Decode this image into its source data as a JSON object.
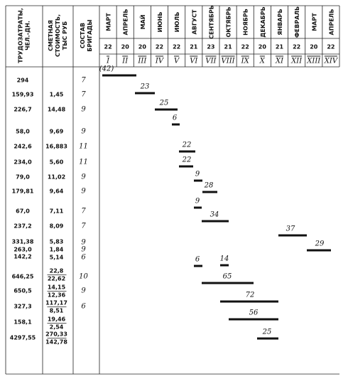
{
  "header": {
    "columns": [
      [
        "ТРУДОЗАТРАТЫ,",
        "ЧЕЛ.-ДН."
      ],
      [
        "СМЕТНАЯ",
        "СТОИМОСТЬ,",
        "ТЫС РУБ"
      ],
      [
        "СОСТАВ",
        "БРИГАДЫ"
      ]
    ],
    "months": [
      {
        "name": "МАРТ",
        "days": "22",
        "period": "I"
      },
      {
        "name": "АПРЕЛЬ",
        "days": "20",
        "period": "II"
      },
      {
        "name": "МАЙ",
        "days": "20",
        "period": "III"
      },
      {
        "name": "ИЮНЬ",
        "days": "22",
        "period": "IV"
      },
      {
        "name": "ИЮЛЬ",
        "days": "22",
        "period": "V"
      },
      {
        "name": "АВГУСТ",
        "days": "21",
        "period": "VI"
      },
      {
        "name": "СЕНТЯБРЬ",
        "days": "23",
        "period": "VII"
      },
      {
        "name": "ОКТЯБРЬ",
        "days": "21",
        "period": "VIII"
      },
      {
        "name": "НОЯБРЬ",
        "days": "22",
        "period": "IX"
      },
      {
        "name": "ДЕКАБРЬ",
        "days": "20",
        "period": "X"
      },
      {
        "name": "ЯНВАРЬ",
        "days": "21",
        "period": "XI"
      },
      {
        "name": "ФЕВРАЛЬ",
        "days": "22",
        "period": "XII"
      },
      {
        "name": "МАРТ",
        "days": "20",
        "period": "XIII"
      },
      {
        "name": "АПРЕЛЬ",
        "days": "22",
        "period": "XIV"
      }
    ]
  },
  "rows": [
    {
      "labor": [
        "294"
      ],
      "cost": [],
      "crew": [
        "7"
      ],
      "bars": [
        "(42)"
      ]
    },
    {
      "labor": [
        "159,93"
      ],
      "cost": [
        "1,45"
      ],
      "crew": [
        "7"
      ],
      "bars": [
        "23"
      ]
    },
    {
      "labor": [
        "226,7"
      ],
      "cost": [
        "14,48"
      ],
      "crew": [
        "9"
      ],
      "bars": [
        "25"
      ]
    },
    {
      "labor": [
        "58,0"
      ],
      "cost": [
        "9,69"
      ],
      "crew": [
        "9"
      ],
      "bars": [
        "6"
      ]
    },
    {
      "labor": [
        "242,6"
      ],
      "cost": [
        "16,883"
      ],
      "crew": [
        "11"
      ],
      "bars": [
        "22"
      ]
    },
    {
      "labor": [
        "234,0"
      ],
      "cost": [
        "5,60"
      ],
      "crew": [
        "11"
      ],
      "bars": [
        "22"
      ]
    },
    {
      "labor": [
        "79,0"
      ],
      "cost": [
        "11,02"
      ],
      "crew": [
        "9"
      ],
      "bars": [
        "9"
      ]
    },
    {
      "labor": [
        "179,81"
      ],
      "cost": [
        "9,64"
      ],
      "crew": [
        "9"
      ],
      "bars": [
        "28"
      ]
    },
    {
      "labor": [
        "67,0"
      ],
      "cost": [
        "7,11"
      ],
      "crew": [
        "7"
      ],
      "bars": [
        "9"
      ]
    },
    {
      "labor": [
        "237,2"
      ],
      "cost": [
        "8,09"
      ],
      "crew": [
        "7"
      ],
      "bars": [
        "34"
      ]
    },
    {
      "labor": [
        "331,38",
        "263,0",
        "142,2"
      ],
      "cost": [
        "5,83",
        "1,84",
        "5,14"
      ],
      "crew": [
        "9",
        "9",
        "6"
      ],
      "bars": [
        "37",
        "29",
        "6",
        "14"
      ]
    },
    {
      "labor": [
        "646,25"
      ],
      "cost": [
        "22,8",
        "22,62"
      ],
      "crew": [
        "10"
      ],
      "bars": [
        "65"
      ]
    },
    {
      "labor": [
        "650,5"
      ],
      "cost": [
        "14,15",
        "12,36"
      ],
      "crew": [
        "9"
      ],
      "bars": [
        "72"
      ]
    },
    {
      "labor": [
        "327,3"
      ],
      "cost": [
        "117,17",
        "8,51"
      ],
      "crew": [
        "6"
      ],
      "bars": [
        "56"
      ]
    },
    {
      "labor": [
        "158,1"
      ],
      "cost": [
        "19,46",
        "2,54"
      ],
      "crew": [],
      "bars": [
        "25"
      ]
    },
    {
      "labor": [
        "4297,55"
      ],
      "cost": [
        "270,33",
        "142,78"
      ],
      "crew": [],
      "bars": []
    }
  ]
}
